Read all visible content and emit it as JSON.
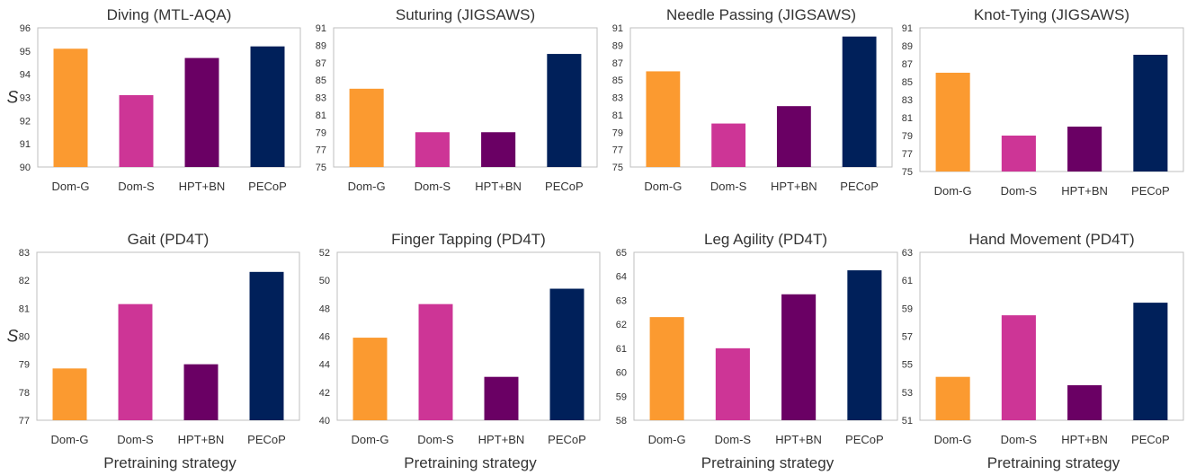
{
  "colors": {
    "Dom-G": "#fb9a30",
    "Dom-S": "#cd3596",
    "HPT+BN": "#6a0064",
    "PECoP": "#00205a",
    "frame": "#bfbfbf",
    "text": "#333333"
  },
  "chart_data": [
    {
      "type": "bar",
      "title": "Diving (MTL-AQA)",
      "categories": [
        "Dom-G",
        "Dom-S",
        "HPT+BN",
        "PECoP"
      ],
      "values": [
        95.1,
        93.1,
        94.7,
        95.2
      ],
      "ylim": [
        90,
        96
      ],
      "yticks": [
        90,
        91,
        92,
        93,
        94,
        95,
        96
      ],
      "ylabel": "S",
      "xlabel": ""
    },
    {
      "type": "bar",
      "title": "Suturing (JIGSAWS)",
      "categories": [
        "Dom-G",
        "Dom-S",
        "HPT+BN",
        "PECoP"
      ],
      "values": [
        84,
        79,
        79,
        88
      ],
      "ylim": [
        75,
        91
      ],
      "yticks": [
        75,
        77,
        79,
        81,
        83,
        85,
        87,
        89,
        91
      ],
      "ylabel": "",
      "xlabel": ""
    },
    {
      "type": "bar",
      "title": "Needle Passing (JIGSAWS)",
      "categories": [
        "Dom-G",
        "Dom-S",
        "HPT+BN",
        "PECoP"
      ],
      "values": [
        86,
        80,
        82,
        90
      ],
      "ylim": [
        75,
        91
      ],
      "yticks": [
        75,
        77,
        79,
        81,
        83,
        85,
        87,
        89,
        91
      ],
      "ylabel": "",
      "xlabel": ""
    },
    {
      "type": "bar",
      "title": "Knot-Tying (JIGSAWS)",
      "categories": [
        "Dom-G",
        "Dom-S",
        "HPT+BN",
        "PECoP"
      ],
      "values": [
        86,
        79,
        80,
        88
      ],
      "ylim": [
        75,
        91
      ],
      "yticks": [
        75,
        77,
        79,
        81,
        83,
        85,
        87,
        89,
        91
      ],
      "ylabel": "",
      "xlabel": ""
    },
    {
      "type": "bar",
      "title": "Gait (PD4T)",
      "categories": [
        "Dom-G",
        "Dom-S",
        "HPT+BN",
        "PECoP"
      ],
      "values": [
        78.85,
        81.15,
        79,
        82.3
      ],
      "ylim": [
        77,
        83
      ],
      "yticks": [
        77,
        78,
        79,
        80,
        81,
        82,
        83
      ],
      "ylabel": "S",
      "xlabel": "Pretraining strategy"
    },
    {
      "type": "bar",
      "title": "Finger Tapping (PD4T)",
      "categories": [
        "Dom-G",
        "Dom-S",
        "HPT+BN",
        "PECoP"
      ],
      "values": [
        45.9,
        48.3,
        43.1,
        49.4
      ],
      "ylim": [
        40,
        52
      ],
      "yticks": [
        40,
        42,
        44,
        46,
        48,
        50,
        52
      ],
      "ylabel": "",
      "xlabel": "Pretraining strategy"
    },
    {
      "type": "bar",
      "title": "Leg Agility (PD4T)",
      "categories": [
        "Dom-G",
        "Dom-S",
        "HPT+BN",
        "PECoP"
      ],
      "values": [
        62.3,
        61,
        63.25,
        64.25
      ],
      "ylim": [
        58,
        65
      ],
      "yticks": [
        58,
        59,
        60,
        61,
        62,
        63,
        64,
        65
      ],
      "ylabel": "",
      "xlabel": "Pretraining strategy"
    },
    {
      "type": "bar",
      "title": "Hand Movement (PD4T)",
      "categories": [
        "Dom-G",
        "Dom-S",
        "HPT+BN",
        "PECoP"
      ],
      "values": [
        54.1,
        58.5,
        53.5,
        59.4
      ],
      "ylim": [
        51,
        63
      ],
      "yticks": [
        51,
        53,
        55,
        57,
        59,
        61,
        63
      ],
      "ylabel": "",
      "xlabel": "Pretraining strategy"
    }
  ]
}
